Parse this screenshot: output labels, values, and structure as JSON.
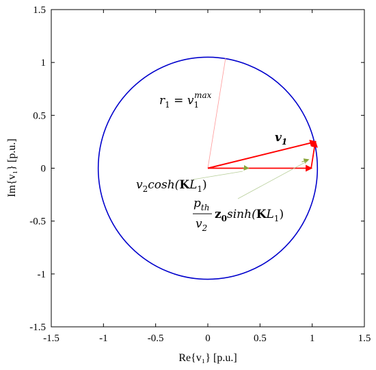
{
  "chart_data": {
    "type": "line",
    "xlabel": "Re{v₁} [p.u.]",
    "ylabel": "Im{v₁} [p.u.]",
    "xlim": [
      -1.5,
      1.5
    ],
    "ylim": [
      -1.5,
      1.5
    ],
    "xticks": [
      "-1.5",
      "-1",
      "-0.5",
      "0",
      "0.5",
      "1",
      "1.5"
    ],
    "yticks": [
      "1.5",
      "1",
      "0.5",
      "0",
      "-0.5",
      "-1",
      "-1.5"
    ],
    "grid": false,
    "circle": {
      "center": [
        0,
        0
      ],
      "radius": 1.05,
      "color": "#0000cc"
    },
    "vectors": {
      "v2cosh": {
        "from": [
          0,
          0
        ],
        "to": [
          0.99,
          0.0
        ],
        "color": "#ff0000"
      },
      "pth_term": {
        "from": [
          0.99,
          0.0
        ],
        "to": [
          1.03,
          0.25
        ],
        "color": "#ff0000"
      },
      "v1": {
        "from": [
          0,
          0
        ],
        "to": [
          1.03,
          0.25
        ],
        "color": "#ff0000"
      },
      "radius_line": {
        "from": [
          0,
          0
        ],
        "to": [
          0.17,
          1.04
        ],
        "color": "#ff9999"
      }
    },
    "annotations": {
      "r1": {
        "r": "r",
        "sub": "1",
        "eq": " = ",
        "v": "v",
        "vsub": "1",
        "sup": "max"
      },
      "v1": {
        "text": "v",
        "sub": "1"
      },
      "v2cosh": {
        "v": "v",
        "vsub": "2",
        "func": "cosh(",
        "K": "K",
        "L": "L",
        "Lsub": "1",
        "close": ")"
      },
      "pth": {
        "num": "p",
        "numsub": "th",
        "den": "v",
        "densub": "2",
        "z": "z",
        "zsub": "0",
        "func": "sinh(",
        "K": "K",
        "L": "L",
        "Lsub": "1",
        "close": ")"
      }
    }
  }
}
